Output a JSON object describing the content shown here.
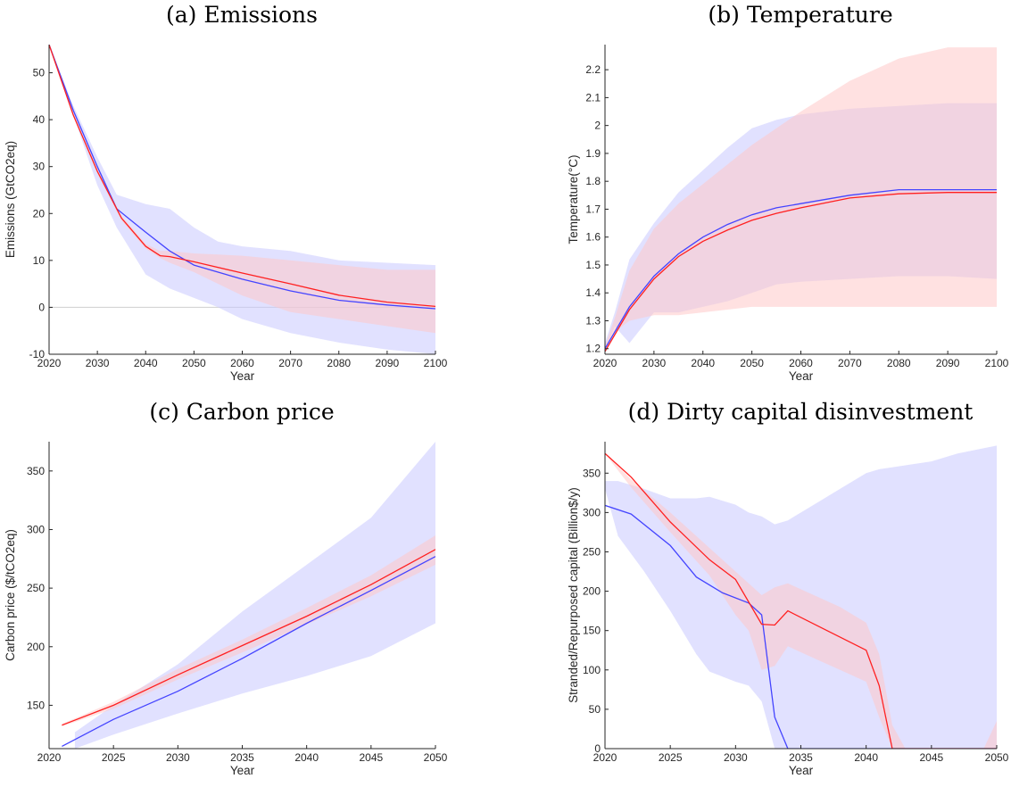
{
  "chart_data": [
    {
      "type": "line",
      "title": "(a) Emissions",
      "xlabel": "Year",
      "ylabel": "Emissions (GtCO2eq)",
      "xlim": [
        2020,
        2100
      ],
      "ylim": [
        -10,
        56
      ],
      "xticks": [
        2020,
        2030,
        2040,
        2050,
        2060,
        2070,
        2080,
        2090,
        2100
      ],
      "yticks": [
        -10,
        0,
        10,
        20,
        30,
        40,
        50
      ],
      "xticklabels": [
        "2020",
        "2030",
        "2040",
        "2050",
        "2060",
        "2070",
        "2080",
        "2090",
        "2100"
      ],
      "yticklabels": [
        "-10",
        "0",
        "10",
        "20",
        "30",
        "40",
        "50"
      ],
      "zero_line": true,
      "series": [
        {
          "color": "#4444ff",
          "band_color": "#c8c8ff",
          "x": [
            2020,
            2025,
            2030,
            2034,
            2040,
            2045,
            2050,
            2055,
            2060,
            2070,
            2080,
            2090,
            2100
          ],
          "y": [
            56,
            42,
            30,
            21,
            16,
            12,
            9,
            7.5,
            6,
            3.5,
            1.5,
            0.5,
            -0.3
          ],
          "band_x": [
            2020,
            2025,
            2030,
            2034,
            2040,
            2045,
            2050,
            2055,
            2060,
            2070,
            2080,
            2090,
            2100
          ],
          "band_low": [
            56,
            41,
            26,
            17,
            7,
            4,
            2,
            0,
            -2.5,
            -5.5,
            -7.5,
            -9,
            -10
          ],
          "band_high": [
            56,
            43,
            32,
            24,
            22,
            21,
            17,
            14,
            13,
            12,
            10,
            9.5,
            9
          ]
        },
        {
          "color": "#ff2020",
          "band_color": "#ffc8c8",
          "x": [
            2020,
            2025,
            2030,
            2035,
            2040,
            2043,
            2045,
            2050,
            2060,
            2070,
            2080,
            2090,
            2100
          ],
          "y": [
            56,
            41,
            29,
            19,
            13,
            11,
            10.8,
            9.7,
            7.3,
            5,
            2.6,
            1.1,
            0.2
          ],
          "band_x": [
            2020,
            2025,
            2030,
            2035,
            2040,
            2043,
            2045,
            2050,
            2060,
            2070,
            2080,
            2090,
            2100
          ],
          "band_low": [
            56,
            41,
            28.5,
            18.5,
            12.5,
            10.5,
            9.5,
            7.5,
            2.5,
            -1,
            -2.5,
            -4,
            -5.5
          ],
          "band_high": [
            56,
            41.5,
            29.5,
            19.5,
            13.5,
            12,
            12,
            11.5,
            11,
            10,
            9,
            8,
            8
          ]
        }
      ]
    },
    {
      "type": "line",
      "title": "(b) Temperature",
      "xlabel": "Year",
      "ylabel": "Temperature(°C)",
      "xlim": [
        2020,
        2100
      ],
      "ylim": [
        1.18,
        2.29
      ],
      "xticks": [
        2020,
        2030,
        2040,
        2050,
        2060,
        2070,
        2080,
        2090,
        2100
      ],
      "yticks": [
        1.2,
        1.3,
        1.4,
        1.5,
        1.6,
        1.7,
        1.8,
        1.9,
        2,
        2.1,
        2.2
      ],
      "xticklabels": [
        "2020",
        "2030",
        "2040",
        "2050",
        "2060",
        "2070",
        "2080",
        "2090",
        "2100"
      ],
      "yticklabels": [
        "1.2",
        "1.3",
        "1.4",
        "1.5",
        "1.6",
        "1.7",
        "1.8",
        "1.9",
        "2",
        "2.1",
        "2.2"
      ],
      "zero_line": false,
      "series": [
        {
          "color": "#4444ff",
          "band_color": "#c8c8ff",
          "x": [
            2020,
            2025,
            2030,
            2035,
            2040,
            2045,
            2050,
            2055,
            2060,
            2070,
            2080,
            2090,
            2100
          ],
          "y": [
            1.2,
            1.35,
            1.46,
            1.54,
            1.6,
            1.645,
            1.68,
            1.705,
            1.72,
            1.75,
            1.77,
            1.77,
            1.77
          ],
          "band_x": [
            2020,
            2022,
            2025,
            2030,
            2035,
            2040,
            2045,
            2050,
            2055,
            2060,
            2070,
            2080,
            2090,
            2100
          ],
          "band_low": [
            1.19,
            1.28,
            1.22,
            1.33,
            1.33,
            1.35,
            1.37,
            1.4,
            1.43,
            1.44,
            1.45,
            1.46,
            1.46,
            1.45
          ],
          "band_high": [
            1.22,
            1.33,
            1.52,
            1.65,
            1.76,
            1.84,
            1.92,
            1.99,
            2.02,
            2.04,
            2.06,
            2.07,
            2.08,
            2.08
          ]
        },
        {
          "color": "#ff2020",
          "band_color": "#ffc8c8",
          "x": [
            2020,
            2025,
            2030,
            2035,
            2040,
            2045,
            2050,
            2055,
            2060,
            2070,
            2080,
            2090,
            2100
          ],
          "y": [
            1.19,
            1.34,
            1.45,
            1.53,
            1.585,
            1.625,
            1.66,
            1.685,
            1.705,
            1.74,
            1.755,
            1.76,
            1.76
          ],
          "band_x": [
            2020,
            2022,
            2025,
            2030,
            2035,
            2040,
            2045,
            2050,
            2055,
            2060,
            2070,
            2080,
            2090,
            2100
          ],
          "band_low": [
            1.19,
            1.26,
            1.3,
            1.32,
            1.32,
            1.33,
            1.34,
            1.35,
            1.35,
            1.35,
            1.35,
            1.35,
            1.35,
            1.35
          ],
          "band_high": [
            1.21,
            1.31,
            1.48,
            1.63,
            1.72,
            1.79,
            1.86,
            1.93,
            1.99,
            2.05,
            2.16,
            2.24,
            2.28,
            2.28
          ]
        }
      ]
    },
    {
      "type": "line",
      "title": "(c) Carbon price",
      "xlabel": "Year",
      "ylabel": "Carbon price ($/tCO2eq)",
      "xlim": [
        2020,
        2050
      ],
      "ylim": [
        113,
        375
      ],
      "xticks": [
        2020,
        2025,
        2030,
        2035,
        2040,
        2045,
        2050
      ],
      "yticks": [
        150,
        200,
        250,
        300,
        350
      ],
      "xticklabels": [
        "2020",
        "2025",
        "2030",
        "2035",
        "2040",
        "2045",
        "2050"
      ],
      "yticklabels": [
        "150",
        "200",
        "250",
        "300",
        "350"
      ],
      "zero_line": false,
      "series": [
        {
          "color": "#4444ff",
          "band_color": "#c8c8ff",
          "x": [
            2021,
            2025,
            2030,
            2035,
            2040,
            2045,
            2050
          ],
          "y": [
            115,
            138,
            162,
            190,
            220,
            248,
            277
          ],
          "band_x": [
            2022,
            2025,
            2030,
            2035,
            2040,
            2045,
            2050
          ],
          "band_low": [
            113,
            125,
            143,
            160,
            175,
            192,
            220
          ],
          "band_high": [
            127,
            150,
            185,
            230,
            270,
            310,
            375
          ]
        },
        {
          "color": "#ff2020",
          "band_color": "#ffc8c8",
          "x": [
            2021,
            2025,
            2030,
            2035,
            2040,
            2045,
            2050
          ],
          "y": [
            133,
            150,
            176,
            201,
            226,
            253,
            283
          ],
          "band_x": [
            2021,
            2025,
            2030,
            2035,
            2040,
            2045,
            2050
          ],
          "band_low": [
            132,
            147,
            172,
            195,
            219,
            243,
            270
          ],
          "band_high": [
            134,
            153,
            181,
            206,
            233,
            261,
            295
          ]
        }
      ]
    },
    {
      "type": "line",
      "title": "(d) Dirty capital disinvestment",
      "xlabel": "Year",
      "ylabel": "Stranded/Repurposed capital (Billion$/y)",
      "xlim": [
        2020,
        2050
      ],
      "ylim": [
        0,
        390
      ],
      "xticks": [
        2020,
        2025,
        2030,
        2035,
        2040,
        2045,
        2050
      ],
      "yticks": [
        0,
        50,
        100,
        150,
        200,
        250,
        300,
        350
      ],
      "xticklabels": [
        "2020",
        "2025",
        "2030",
        "2035",
        "2040",
        "2045",
        "2050"
      ],
      "yticklabels": [
        "0",
        "50",
        "100",
        "150",
        "200",
        "250",
        "300",
        "350"
      ],
      "zero_line": false,
      "series": [
        {
          "color": "#4444ff",
          "band_color": "#c8c8ff",
          "x": [
            2020,
            2022,
            2025,
            2027,
            2029,
            2031,
            2032,
            2033,
            2034,
            2038,
            2041,
            2045,
            2050
          ],
          "y": [
            309,
            298,
            258,
            218,
            198,
            185,
            170,
            40,
            0,
            0,
            0,
            0,
            0
          ],
          "band_x": [
            2020,
            2021,
            2023,
            2025,
            2027,
            2028,
            2030,
            2031,
            2032,
            2033,
            2034,
            2036,
            2038,
            2040,
            2041,
            2043,
            2045,
            2047,
            2050
          ],
          "band_low": [
            330,
            270,
            225,
            175,
            120,
            98,
            85,
            80,
            60,
            0,
            0,
            0,
            0,
            0,
            0,
            0,
            0,
            0,
            0
          ],
          "band_high": [
            340,
            340,
            330,
            318,
            318,
            320,
            310,
            300,
            295,
            285,
            290,
            310,
            330,
            350,
            355,
            360,
            365,
            375,
            385
          ]
        },
        {
          "color": "#ff2020",
          "band_color": "#ffc8c8",
          "x": [
            2020,
            2022,
            2025,
            2028,
            2030,
            2032,
            2033,
            2034,
            2037,
            2040,
            2041,
            2042,
            2043,
            2045,
            2049,
            2050
          ],
          "y": [
            375,
            345,
            288,
            240,
            215,
            158,
            157,
            175,
            150,
            125,
            80,
            0,
            0,
            0,
            0,
            0
          ],
          "band_x": [
            2020,
            2022,
            2025,
            2028,
            2030,
            2031,
            2032,
            2033,
            2034,
            2036,
            2038,
            2040,
            2041,
            2042,
            2043,
            2045,
            2049,
            2050
          ],
          "band_low": [
            375,
            332,
            275,
            220,
            170,
            150,
            100,
            105,
            130,
            115,
            100,
            85,
            40,
            0,
            0,
            0,
            0,
            0
          ],
          "band_high": [
            375,
            342,
            300,
            255,
            225,
            210,
            195,
            205,
            210,
            195,
            180,
            160,
            120,
            30,
            0,
            0,
            0,
            35
          ]
        }
      ]
    }
  ]
}
